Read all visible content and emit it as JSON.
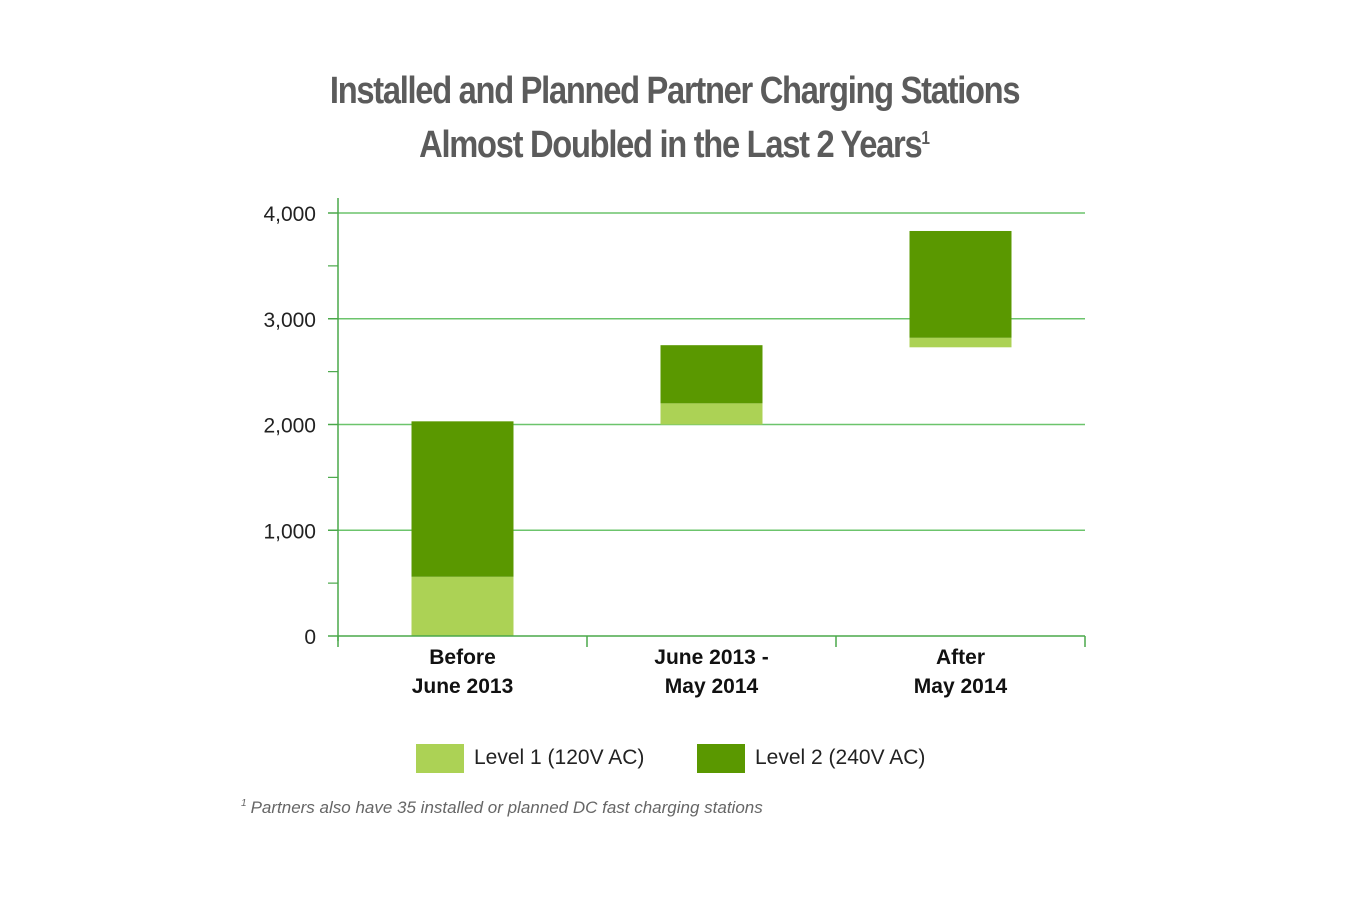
{
  "title": {
    "line1": "Installed and Planned Partner Charging Stations",
    "line2": "Almost Doubled in the Last 2 Years",
    "superscript": "1"
  },
  "colors": {
    "level1": "#acd255",
    "level2": "#5a9800",
    "gridline": "#6cc46c",
    "axis": "#4aa84a"
  },
  "chart_data": {
    "type": "bar",
    "subtype": "waterfall-stacked",
    "categories": [
      {
        "line1": "Before",
        "line2": "June 2013"
      },
      {
        "line1": "June 2013 -",
        "line2": "May 2014"
      },
      {
        "line1": "After",
        "line2": "May 2014"
      }
    ],
    "bars": [
      {
        "base": 0,
        "level1": 560,
        "level2": 1470
      },
      {
        "base": 2000,
        "level1": 200,
        "level2": 550
      },
      {
        "base": 2730,
        "level1": 90,
        "level2": 1010
      }
    ],
    "series": [
      {
        "name": "Level 1 (120V AC)",
        "key": "level1"
      },
      {
        "name": "Level 2 (240V AC)",
        "key": "level2"
      }
    ],
    "ylim": [
      0,
      4000
    ],
    "yticks": [
      {
        "value": 0,
        "label": "0"
      },
      {
        "value": 1000,
        "label": "1,000"
      },
      {
        "value": 2000,
        "label": "2,000"
      },
      {
        "value": 3000,
        "label": "3,000"
      },
      {
        "value": 4000,
        "label": "4,000"
      }
    ],
    "minor_ticks": [
      500,
      1500,
      2500,
      3500
    ],
    "grid": true,
    "legend_position": "bottom"
  },
  "footnote": {
    "marker": "1",
    "text": "Partners also have 35 installed or planned DC fast charging stations"
  }
}
